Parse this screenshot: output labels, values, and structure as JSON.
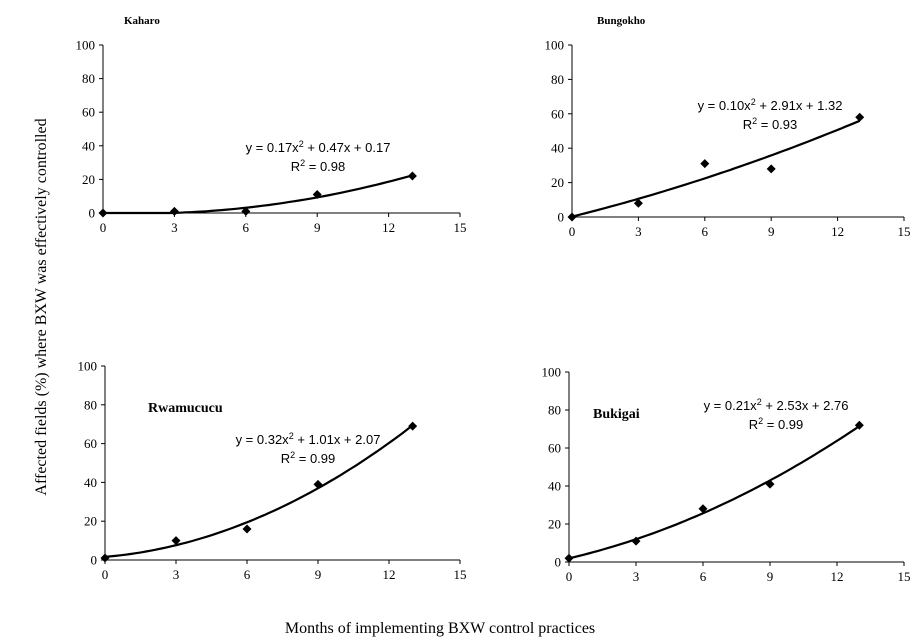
{
  "figure": {
    "ylabel": "Affected fields  (%) where BXW was effectively controlled",
    "xlabel": "Months of implementing BXW control practices"
  },
  "chart_data": [
    {
      "type": "scatter",
      "title": "Kaharo",
      "x": [
        0,
        3,
        6,
        9,
        13
      ],
      "y": [
        0,
        1,
        1,
        11,
        22
      ],
      "xlim": [
        0,
        15
      ],
      "ylim": [
        0,
        100
      ],
      "xticks": [
        0,
        3,
        6,
        9,
        12,
        15
      ],
      "yticks": [
        0,
        20,
        40,
        60,
        80,
        100
      ],
      "trendline": {
        "type": "polynomial",
        "order": 2
      },
      "equation": {
        "prefix": "y = 0.17x",
        "sup": "2",
        "suffix": " + 0.47x + 0.17"
      },
      "r2": {
        "prefix": "R",
        "sup": "2",
        "suffix": " = 0.98"
      }
    },
    {
      "type": "scatter",
      "title": "Bungokho",
      "x": [
        0,
        3,
        6,
        9,
        13
      ],
      "y": [
        0,
        8,
        31,
        28,
        58
      ],
      "xlim": [
        0,
        15
      ],
      "ylim": [
        0,
        100
      ],
      "xticks": [
        0,
        3,
        6,
        9,
        12,
        15
      ],
      "yticks": [
        0,
        20,
        40,
        60,
        80,
        100
      ],
      "trendline": {
        "type": "polynomial",
        "order": 2
      },
      "equation": {
        "prefix": "y = 0.10x",
        "sup": "2",
        "suffix": " + 2.91x + 1.32"
      },
      "r2": {
        "prefix": "R",
        "sup": "2",
        "suffix": " = 0.93"
      }
    },
    {
      "type": "scatter",
      "title": "Rwamucucu",
      "x": [
        0,
        3,
        6,
        9,
        13
      ],
      "y": [
        1,
        10,
        16,
        39,
        69
      ],
      "xlim": [
        0,
        15
      ],
      "ylim": [
        0,
        100
      ],
      "xticks": [
        0,
        3,
        6,
        9,
        12,
        15
      ],
      "yticks": [
        0,
        20,
        40,
        60,
        80,
        100
      ],
      "trendline": {
        "type": "polynomial",
        "order": 2
      },
      "equation": {
        "prefix": "y = 0.32x",
        "sup": "2",
        "suffix": " + 1.01x + 2.07"
      },
      "r2": {
        "prefix": "R",
        "sup": "2",
        "suffix": " = 0.99"
      }
    },
    {
      "type": "scatter",
      "title": "Bukigai",
      "x": [
        0,
        3,
        6,
        9,
        13
      ],
      "y": [
        2,
        11,
        28,
        41,
        72
      ],
      "xlim": [
        0,
        15
      ],
      "ylim": [
        0,
        100
      ],
      "xticks": [
        0,
        3,
        6,
        9,
        12,
        15
      ],
      "yticks": [
        0,
        20,
        40,
        60,
        80,
        100
      ],
      "trendline": {
        "type": "polynomial",
        "order": 2
      },
      "equation": {
        "prefix": "y = 0.21x",
        "sup": "2",
        "suffix": " + 2.53x + 2.76"
      },
      "r2": {
        "prefix": "R",
        "sup": "2",
        "suffix": " = 0.99"
      }
    }
  ]
}
